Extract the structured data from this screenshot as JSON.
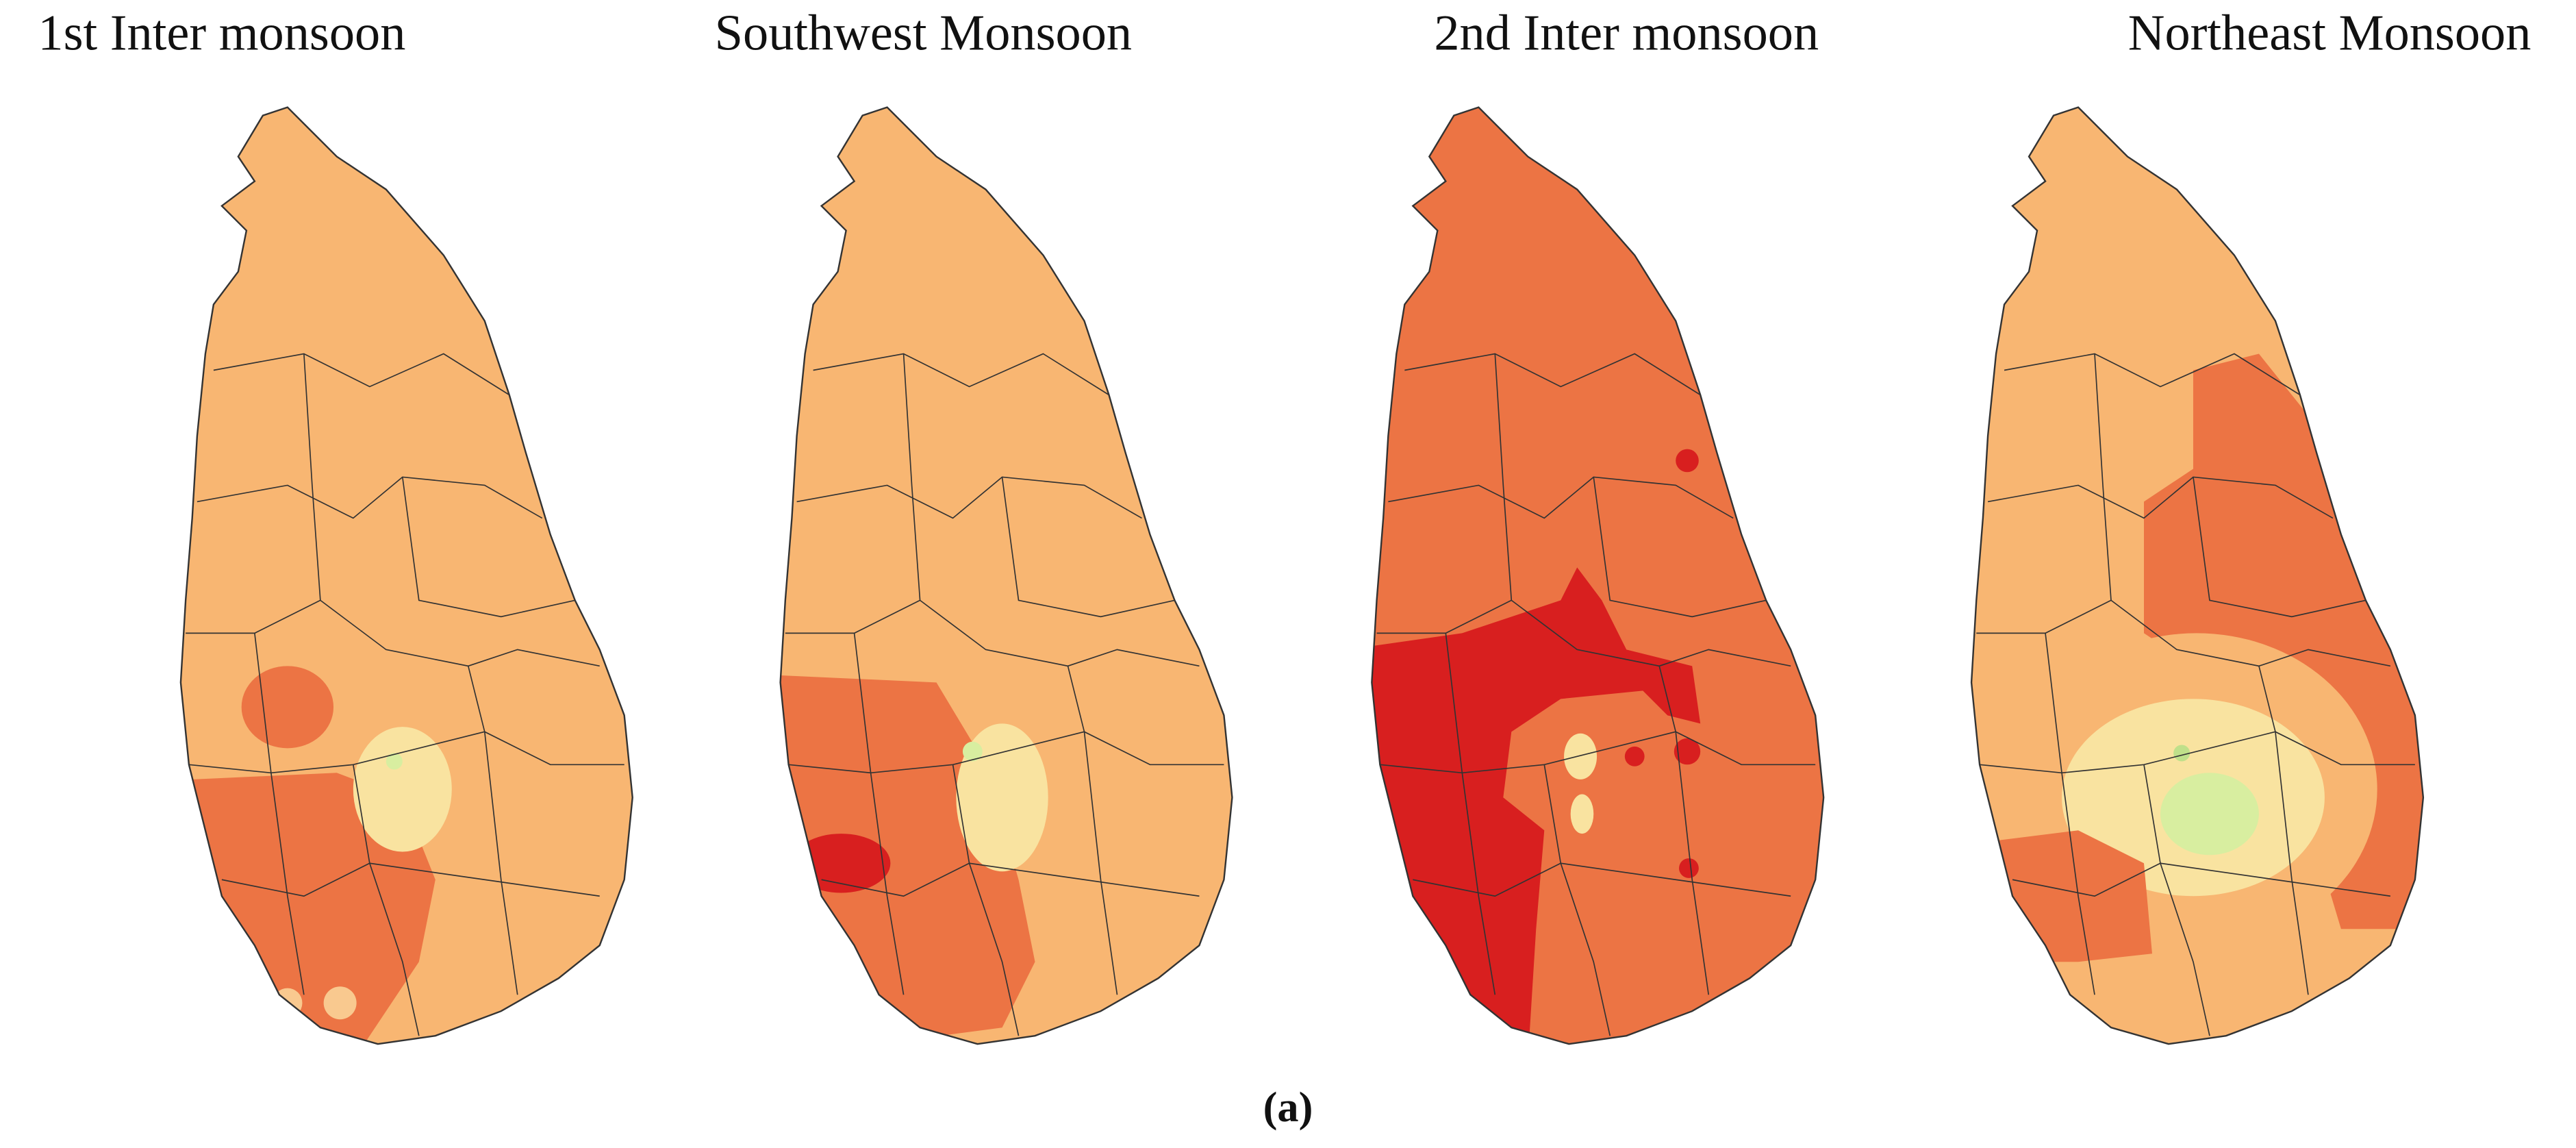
{
  "panels": [
    {
      "title": "1st Inter monsoon"
    },
    {
      "title": "Southwest Monsoon"
    },
    {
      "title": "2nd Inter monsoon"
    },
    {
      "title": "Northeast Monsoon"
    }
  ],
  "caption": "(a)"
}
